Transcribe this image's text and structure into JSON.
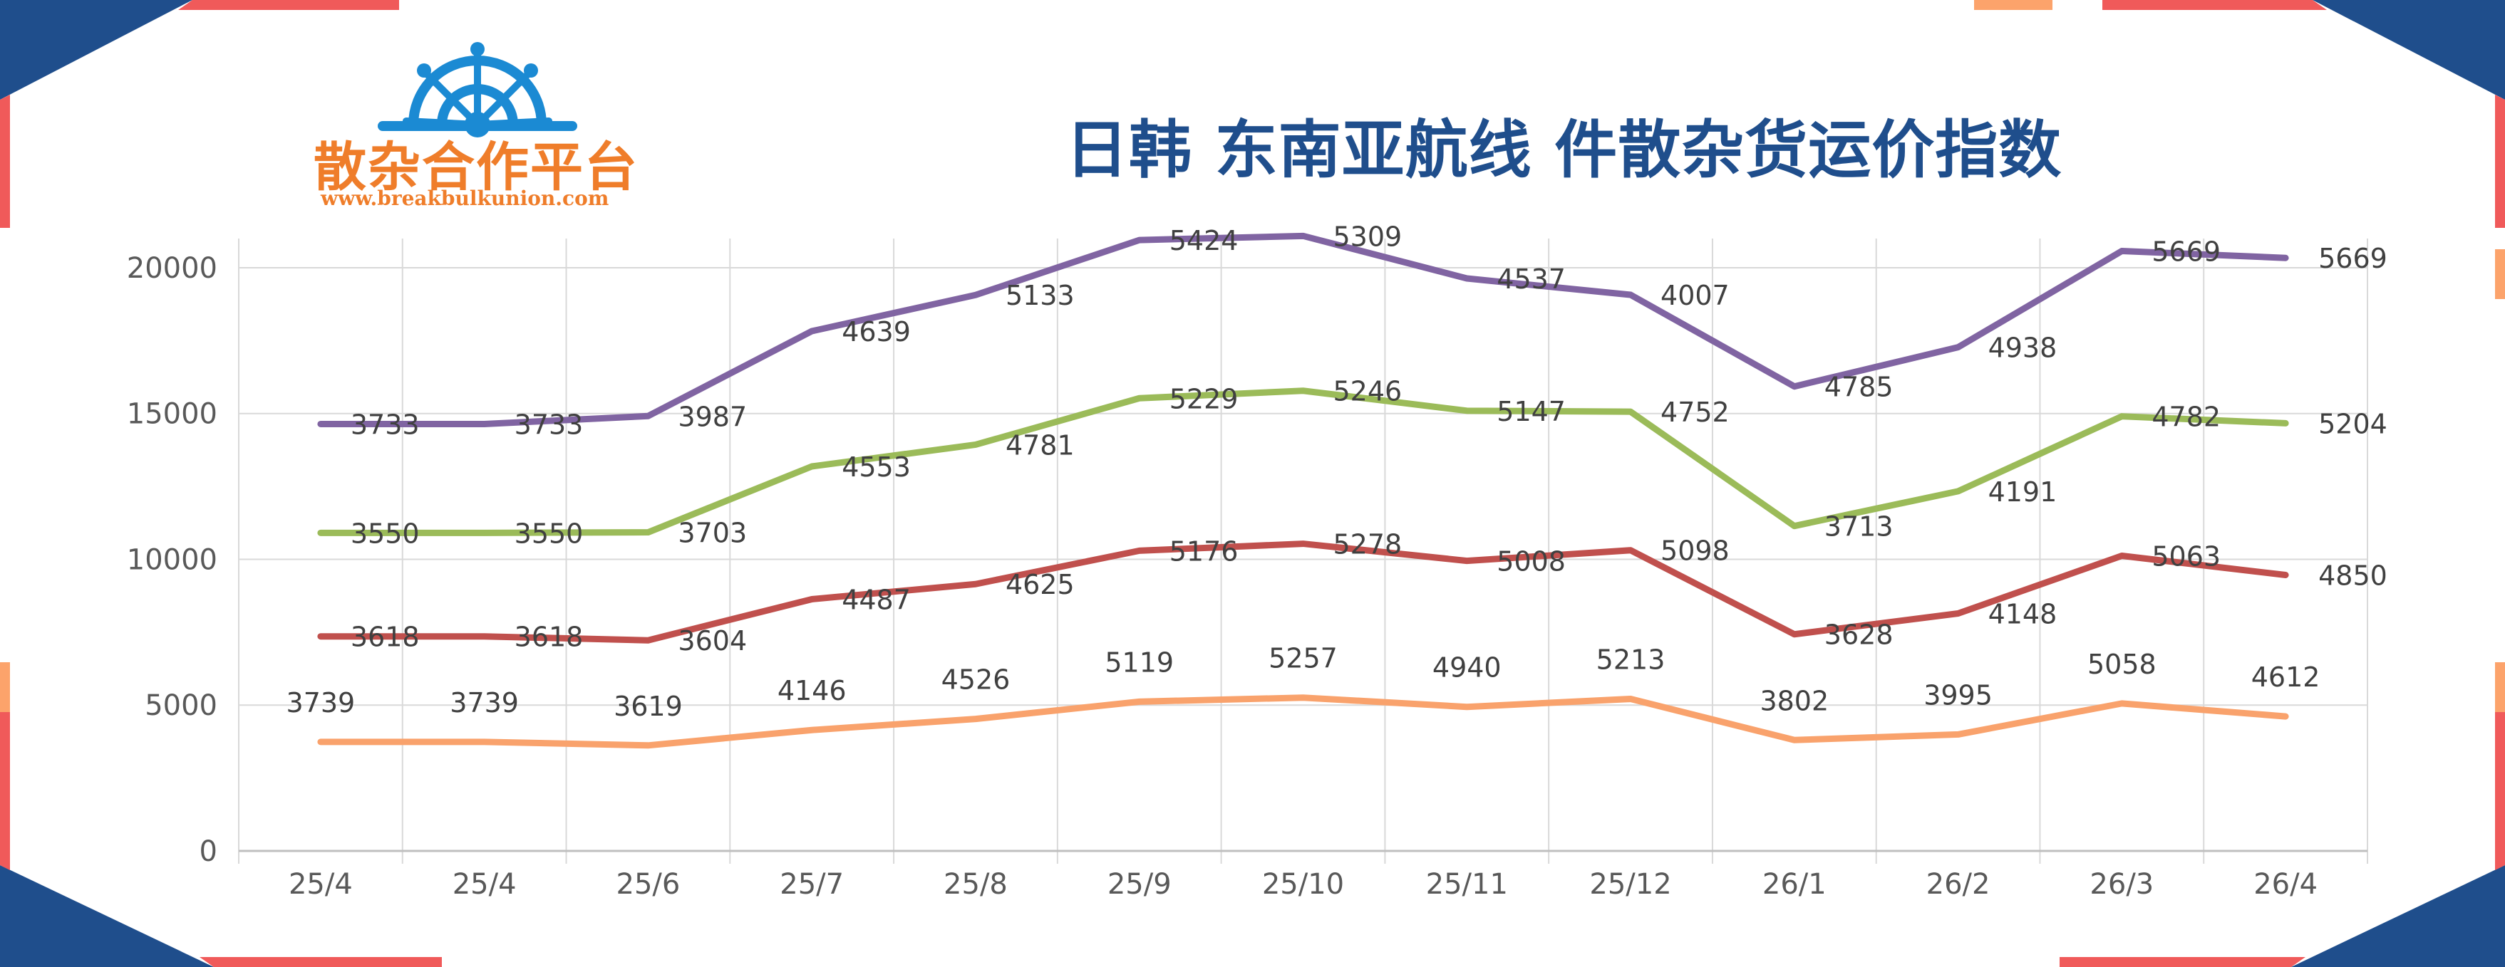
{
  "header": {
    "title": "日韩 东南亚航线 件散杂货运价指数",
    "logo_text": "散杂合作平台",
    "logo_url": "www.breakbulkunion.com"
  },
  "colors": {
    "title": "#1f4e8c",
    "logo": "#ef7d2a",
    "wheel": "#1b8ad3",
    "frame_navy": "#1f4e8c",
    "frame_red": "#f05a5a",
    "frame_orange": "#fca36b"
  },
  "chart_data": {
    "type": "line",
    "categories": [
      "25/4",
      "25/4",
      "25/6",
      "25/7",
      "25/8",
      "25/9",
      "25/10",
      "25/11",
      "25/12",
      "26/1",
      "26/2",
      "26/3",
      "26/4"
    ],
    "y_ticks": [
      "0",
      "5000",
      "10000",
      "15000",
      "20000"
    ],
    "ylim": [
      0,
      21000
    ],
    "grid": true,
    "stacked": true,
    "series": [
      {
        "color": "#f9a26c",
        "values": [
          3739,
          3739,
          3619,
          4146,
          4526,
          5119,
          5257,
          4940,
          5213,
          3802,
          3995,
          5058,
          4612
        ]
      },
      {
        "color": "#c0504d",
        "values": [
          3618,
          3618,
          3604,
          4487,
          4625,
          5176,
          5278,
          5008,
          5098,
          3628,
          4148,
          5063,
          4850
        ]
      },
      {
        "color": "#9bbb59",
        "values": [
          3550,
          3550,
          3703,
          4553,
          4781,
          5229,
          5246,
          5147,
          4752,
          3713,
          4191,
          4782,
          5204
        ]
      },
      {
        "color": "#8064a2",
        "values": [
          3733,
          3733,
          3987,
          4639,
          5133,
          5424,
          5309,
          4537,
          4007,
          4785,
          4938,
          5669,
          5669
        ]
      }
    ]
  }
}
